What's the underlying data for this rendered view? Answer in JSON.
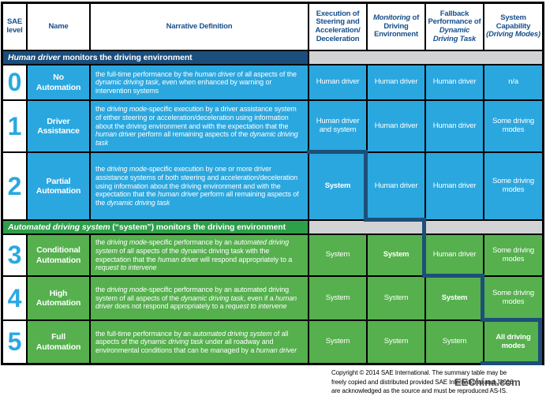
{
  "colors": {
    "cell_blue": "#2BA7DF",
    "cell_green": "#55B04D",
    "band_navy": "#1B4E7D",
    "band_green": "#2E9F49",
    "band_gray": "#D2D3D4",
    "header_text": "#17508C",
    "level_number": "#29A9E1",
    "staircase": "#1D4F79",
    "border": "#000000"
  },
  "header": {
    "columns": [
      {
        "runs": [
          {
            "t": "SAE level"
          }
        ]
      },
      {
        "runs": [
          {
            "t": "Name"
          }
        ]
      },
      {
        "runs": [
          {
            "t": "Narrative Definition"
          }
        ]
      },
      {
        "runs": [
          {
            "t": "Execution of Steering and Acceleration/ Deceleration"
          }
        ]
      },
      {
        "runs": [
          {
            "t": "Monitoring",
            "i": true
          },
          {
            "t": " of Driving Environment"
          }
        ]
      },
      {
        "runs": [
          {
            "t": "Fallback Performance of "
          },
          {
            "t": "Dynamic Driving Task",
            "i": true
          }
        ]
      },
      {
        "runs": [
          {
            "t": "System Capability "
          },
          {
            "t": "(Driving Modes)",
            "i": true
          }
        ]
      }
    ]
  },
  "sections": [
    {
      "title_runs": [
        {
          "t": "Human driver",
          "i": true
        },
        {
          "t": " monitors the driving environment"
        }
      ]
    },
    {
      "title_runs": [
        {
          "t": "Automated driving system",
          "i": true
        },
        {
          "t": " (“system”) monitors the driving environment"
        }
      ]
    }
  ],
  "rows": [
    {
      "level": "0",
      "name": "No Automation",
      "narrative": [
        {
          "t": "the full-time performance by the "
        },
        {
          "t": "human driver",
          "i": true
        },
        {
          "t": " of all aspects of the "
        },
        {
          "t": "dynamic driving task",
          "i": true
        },
        {
          "t": ", even when enhanced by warning or intervention systems"
        }
      ],
      "cells": [
        [
          {
            "t": "Human driver"
          }
        ],
        [
          {
            "t": "Human driver"
          }
        ],
        [
          {
            "t": "Human driver"
          }
        ],
        [
          {
            "t": "n/a"
          }
        ]
      ]
    },
    {
      "level": "1",
      "name": "Driver Assistance",
      "narrative": [
        {
          "t": "the "
        },
        {
          "t": "driving mode",
          "i": true
        },
        {
          "t": "-specific execution by a driver assistance system of either steering or acceleration/deceleration using information about the driving environment and with the expectation that the "
        },
        {
          "t": "human driver",
          "i": true
        },
        {
          "t": " perform all remaining aspects of the "
        },
        {
          "t": "dynamic driving task",
          "i": true
        }
      ],
      "cells": [
        [
          {
            "t": "Human driver and system"
          }
        ],
        [
          {
            "t": "Human driver"
          }
        ],
        [
          {
            "t": "Human driver"
          }
        ],
        [
          {
            "t": "Some driving modes"
          }
        ]
      ]
    },
    {
      "level": "2",
      "name": "Partial Automation",
      "narrative": [
        {
          "t": "the "
        },
        {
          "t": "driving mode",
          "i": true
        },
        {
          "t": "-specific execution by one or more driver assistance systems of both steering and acceleration/deceleration using information about the driving environment and with the expectation that the "
        },
        {
          "t": "human driver",
          "i": true
        },
        {
          "t": " perform all remaining aspects of the "
        },
        {
          "t": "dynamic driving task",
          "i": true
        }
      ],
      "cells": [
        [
          {
            "t": "System",
            "b": true
          }
        ],
        [
          {
            "t": "Human driver"
          }
        ],
        [
          {
            "t": "Human driver"
          }
        ],
        [
          {
            "t": "Some driving modes"
          }
        ]
      ]
    },
    {
      "level": "3",
      "name": "Conditional Automation",
      "narrative": [
        {
          "t": "the "
        },
        {
          "t": "driving mode",
          "i": true
        },
        {
          "t": "-specific performance by an "
        },
        {
          "t": "automated driving system",
          "i": true
        },
        {
          "t": " of all aspects of the dynamic driving task with the expectation that the "
        },
        {
          "t": "human driver",
          "i": true
        },
        {
          "t": " will respond appropriately to a "
        },
        {
          "t": "request to intervene",
          "i": true
        }
      ],
      "cells": [
        [
          {
            "t": "System"
          }
        ],
        [
          {
            "t": "System",
            "b": true
          }
        ],
        [
          {
            "t": "Human driver"
          }
        ],
        [
          {
            "t": "Some driving modes"
          }
        ]
      ]
    },
    {
      "level": "4",
      "name": "High Automation",
      "narrative": [
        {
          "t": "the "
        },
        {
          "t": "driving mode",
          "i": true
        },
        {
          "t": "-specific performance by an automated driving system of all aspects of the "
        },
        {
          "t": "dynamic driving task",
          "i": true
        },
        {
          "t": ", even if a "
        },
        {
          "t": "human driver",
          "i": true
        },
        {
          "t": " does not respond appropriately to a "
        },
        {
          "t": "request to intervene",
          "i": true
        }
      ],
      "cells": [
        [
          {
            "t": "System"
          }
        ],
        [
          {
            "t": "System"
          }
        ],
        [
          {
            "t": "System",
            "b": true
          }
        ],
        [
          {
            "t": "Some driving modes"
          }
        ]
      ]
    },
    {
      "level": "5",
      "name": "Full Automation",
      "narrative": [
        {
          "t": "the full-time performance by an "
        },
        {
          "t": "automated driving system",
          "i": true
        },
        {
          "t": " of all aspects of the "
        },
        {
          "t": "dynamic driving task",
          "i": true
        },
        {
          "t": " under all roadway and environmental conditions that can be managed by a "
        },
        {
          "t": "human driver",
          "i": true
        }
      ],
      "cells": [
        [
          {
            "t": "System"
          }
        ],
        [
          {
            "t": "System"
          }
        ],
        [
          {
            "t": "System"
          }
        ],
        [
          {
            "t": "All driving modes",
            "b": true
          }
        ]
      ]
    }
  ],
  "copyright": {
    "lines": [
      "Copyright © 2014 SAE International.  The summary table may be",
      "freely copied and distributed provided SAE International and J3016",
      "are acknowledged as the source and must be reproduced AS-IS."
    ]
  },
  "watermark": "EEChina.com"
}
